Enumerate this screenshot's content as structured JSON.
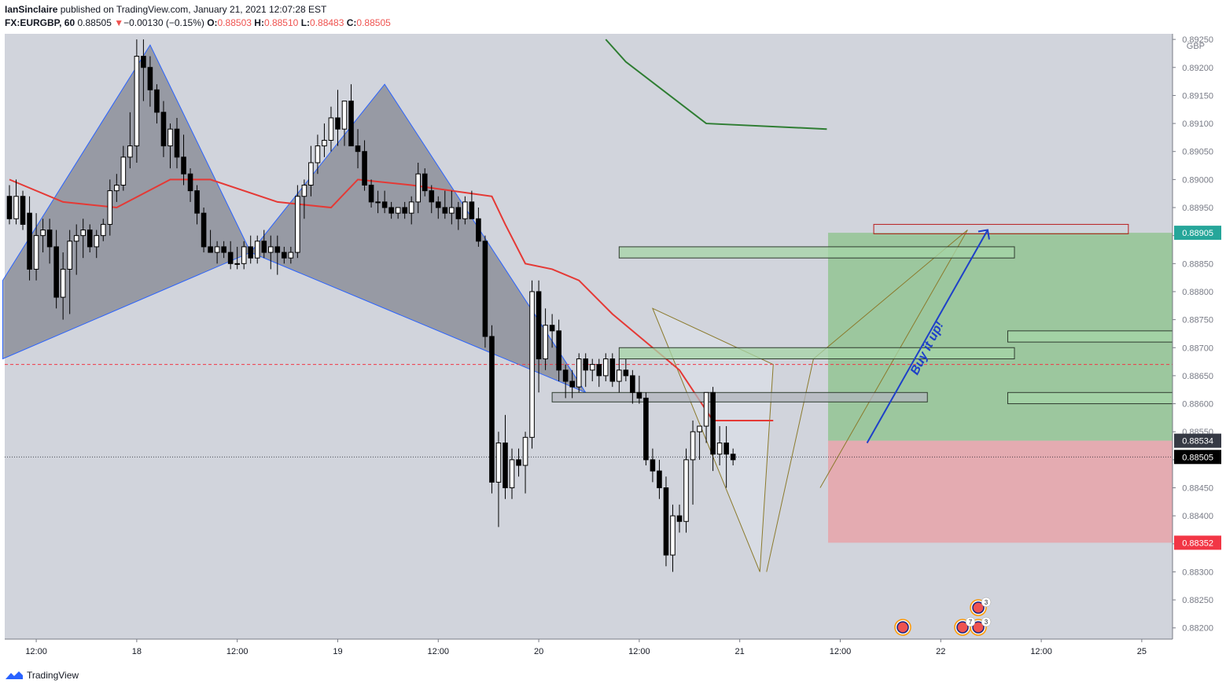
{
  "header": {
    "author": "IanSinclaire",
    "published_text": "published on TradingView.com, January 21, 2021 12:07:28 EST",
    "symbol": "FX:EURGBP, 60",
    "last_price": "0.88505",
    "change_arrow": "▼",
    "change": "−0.00130 (−0.15%)",
    "open_label": "O:",
    "open": "0.88503",
    "high_label": "H:",
    "high": "0.88510",
    "low_label": "L:",
    "low": "0.88483",
    "close_label": "C:",
    "close": "0.88505"
  },
  "footer": {
    "brand": "TradingView"
  },
  "colors": {
    "background": "#d1d4dc",
    "up_candle": "#ffffff",
    "down_candle": "#000000",
    "ma_red": "#e53935",
    "ma_green": "#2e7d32",
    "pattern_fill": "#787b86",
    "pattern_stroke": "#2962ff",
    "target_zone": "#8fc38f",
    "stop_zone": "#e8a3a9",
    "annotation_blue": "#1e40c8",
    "triangle_stroke": "#8b7a2c"
  },
  "chart_data": {
    "type": "candlestick",
    "symbol": "FX:EURGBP",
    "timeframe": "60",
    "currency": "GBP",
    "ylim": [
      0.8818,
      0.8926
    ],
    "y_ticks": [
      "0.89250",
      "0.89200",
      "0.89150",
      "0.89100",
      "0.89050",
      "0.89000",
      "0.88950",
      "0.88900",
      "0.88850",
      "0.88800",
      "0.88750",
      "0.88700",
      "0.88650",
      "0.88600",
      "0.88550",
      "0.88500",
      "0.88450",
      "0.88400",
      "0.88350",
      "0.88300",
      "0.88250",
      "0.88200"
    ],
    "x_ticks": [
      "12:00",
      "18",
      "12:00",
      "19",
      "12:00",
      "20",
      "12:00",
      "21",
      "12:00",
      "22",
      "12:00",
      "25"
    ],
    "candles_ohlc": [
      [
        0.8897,
        0.8899,
        0.8892,
        0.8893
      ],
      [
        0.8893,
        0.89,
        0.8892,
        0.8897
      ],
      [
        0.8897,
        0.8898,
        0.8891,
        0.8892
      ],
      [
        0.8894,
        0.8897,
        0.8882,
        0.8884
      ],
      [
        0.8884,
        0.8894,
        0.8882,
        0.889
      ],
      [
        0.889,
        0.8893,
        0.8887,
        0.8891
      ],
      [
        0.8891,
        0.8893,
        0.8885,
        0.8888
      ],
      [
        0.8888,
        0.8891,
        0.8877,
        0.8879
      ],
      [
        0.8879,
        0.8887,
        0.8875,
        0.8884
      ],
      [
        0.8884,
        0.8891,
        0.8876,
        0.8889
      ],
      [
        0.8889,
        0.8892,
        0.8883,
        0.889
      ],
      [
        0.889,
        0.8893,
        0.8886,
        0.8891
      ],
      [
        0.8891,
        0.8892,
        0.8887,
        0.8888
      ],
      [
        0.8888,
        0.8891,
        0.8886,
        0.889
      ],
      [
        0.889,
        0.8893,
        0.8889,
        0.8892
      ],
      [
        0.8892,
        0.89,
        0.889,
        0.8898
      ],
      [
        0.8898,
        0.8901,
        0.8896,
        0.8899
      ],
      [
        0.8899,
        0.8906,
        0.8898,
        0.8904
      ],
      [
        0.8904,
        0.8912,
        0.8902,
        0.8906
      ],
      [
        0.8906,
        0.8925,
        0.8903,
        0.8922
      ],
      [
        0.8922,
        0.8925,
        0.8914,
        0.892
      ],
      [
        0.892,
        0.8922,
        0.8913,
        0.8916
      ],
      [
        0.8916,
        0.8917,
        0.891,
        0.8912
      ],
      [
        0.8912,
        0.8914,
        0.8904,
        0.8906
      ],
      [
        0.8906,
        0.891,
        0.8902,
        0.8909
      ],
      [
        0.8909,
        0.8911,
        0.8902,
        0.8904
      ],
      [
        0.8904,
        0.8908,
        0.8899,
        0.8901
      ],
      [
        0.8901,
        0.8902,
        0.8896,
        0.8898
      ],
      [
        0.8898,
        0.8899,
        0.8892,
        0.8894
      ],
      [
        0.8894,
        0.8895,
        0.8887,
        0.8888
      ],
      [
        0.8888,
        0.8891,
        0.8887,
        0.8887
      ],
      [
        0.8887,
        0.8889,
        0.8885,
        0.8888
      ],
      [
        0.8888,
        0.8889,
        0.8886,
        0.8887
      ],
      [
        0.8887,
        0.8889,
        0.8884,
        0.8885
      ],
      [
        0.8885,
        0.8888,
        0.8884,
        0.8885
      ],
      [
        0.8885,
        0.8889,
        0.8884,
        0.8888
      ],
      [
        0.8888,
        0.889,
        0.8885,
        0.8886
      ],
      [
        0.8886,
        0.889,
        0.8885,
        0.8889
      ],
      [
        0.8889,
        0.8891,
        0.8886,
        0.8887
      ],
      [
        0.8887,
        0.889,
        0.8884,
        0.8888
      ],
      [
        0.8888,
        0.889,
        0.8883,
        0.8887
      ],
      [
        0.8887,
        0.8888,
        0.8885,
        0.8886
      ],
      [
        0.8886,
        0.8888,
        0.8885,
        0.8887
      ],
      [
        0.8887,
        0.8899,
        0.8886,
        0.8897
      ],
      [
        0.8897,
        0.89,
        0.8893,
        0.8899
      ],
      [
        0.8899,
        0.8906,
        0.8897,
        0.8903
      ],
      [
        0.8903,
        0.8908,
        0.8901,
        0.8906
      ],
      [
        0.8906,
        0.891,
        0.8904,
        0.8907
      ],
      [
        0.8907,
        0.8913,
        0.8905,
        0.8911
      ],
      [
        0.8911,
        0.8916,
        0.8906,
        0.8909
      ],
      [
        0.8909,
        0.8913,
        0.8906,
        0.8914
      ],
      [
        0.8914,
        0.8917,
        0.8908,
        0.8906
      ],
      [
        0.8906,
        0.8909,
        0.8902,
        0.8905
      ],
      [
        0.8905,
        0.8907,
        0.8898,
        0.8899
      ],
      [
        0.8899,
        0.89,
        0.8895,
        0.8896
      ],
      [
        0.8896,
        0.8898,
        0.8894,
        0.8896
      ],
      [
        0.8896,
        0.8898,
        0.8894,
        0.8895
      ],
      [
        0.8895,
        0.8896,
        0.8893,
        0.8894
      ],
      [
        0.8894,
        0.8895,
        0.8893,
        0.8895
      ],
      [
        0.8895,
        0.8896,
        0.8893,
        0.8894
      ],
      [
        0.8894,
        0.8897,
        0.8892,
        0.8896
      ],
      [
        0.8896,
        0.8903,
        0.8894,
        0.8901
      ],
      [
        0.8901,
        0.8902,
        0.8897,
        0.8898
      ],
      [
        0.8898,
        0.8899,
        0.8894,
        0.8896
      ],
      [
        0.8896,
        0.8897,
        0.8893,
        0.8895
      ],
      [
        0.8895,
        0.8898,
        0.8893,
        0.8894
      ],
      [
        0.8894,
        0.8898,
        0.8892,
        0.8895
      ],
      [
        0.8895,
        0.8896,
        0.8891,
        0.8893
      ],
      [
        0.8893,
        0.8897,
        0.8892,
        0.8896
      ],
      [
        0.8896,
        0.8898,
        0.8893,
        0.8893
      ],
      [
        0.8893,
        0.8895,
        0.8888,
        0.8889
      ],
      [
        0.8889,
        0.889,
        0.887,
        0.8872
      ],
      [
        0.8872,
        0.8874,
        0.8844,
        0.8846
      ],
      [
        0.8846,
        0.8855,
        0.8838,
        0.8853
      ],
      [
        0.8853,
        0.8858,
        0.8843,
        0.8845
      ],
      [
        0.8845,
        0.8852,
        0.8843,
        0.885
      ],
      [
        0.885,
        0.8852,
        0.8847,
        0.8849
      ],
      [
        0.8849,
        0.8855,
        0.8844,
        0.8854
      ],
      [
        0.8854,
        0.8882,
        0.8852,
        0.888
      ],
      [
        0.888,
        0.8882,
        0.8862,
        0.8868
      ],
      [
        0.8868,
        0.8877,
        0.8866,
        0.8874
      ],
      [
        0.8874,
        0.8876,
        0.887,
        0.8873
      ],
      [
        0.8873,
        0.8875,
        0.8864,
        0.8866
      ],
      [
        0.8866,
        0.8867,
        0.8861,
        0.8864
      ],
      [
        0.8864,
        0.8866,
        0.8861,
        0.8863
      ],
      [
        0.8863,
        0.8869,
        0.8862,
        0.8868
      ],
      [
        0.8868,
        0.8869,
        0.8863,
        0.8866
      ],
      [
        0.8866,
        0.8868,
        0.8864,
        0.8867
      ],
      [
        0.8867,
        0.8868,
        0.8863,
        0.8865
      ],
      [
        0.8865,
        0.8869,
        0.8864,
        0.8868
      ],
      [
        0.8868,
        0.8869,
        0.8863,
        0.8864
      ],
      [
        0.8864,
        0.8868,
        0.8862,
        0.8866
      ],
      [
        0.8866,
        0.8868,
        0.8864,
        0.8865
      ],
      [
        0.8865,
        0.8866,
        0.886,
        0.8862
      ],
      [
        0.8862,
        0.8865,
        0.886,
        0.8861
      ],
      [
        0.8861,
        0.8862,
        0.8849,
        0.885
      ],
      [
        0.885,
        0.8852,
        0.8846,
        0.8848
      ],
      [
        0.8848,
        0.885,
        0.8843,
        0.8845
      ],
      [
        0.8845,
        0.8847,
        0.8831,
        0.8833
      ],
      [
        0.8833,
        0.8842,
        0.883,
        0.884
      ],
      [
        0.884,
        0.8842,
        0.8837,
        0.8839
      ],
      [
        0.8839,
        0.8852,
        0.8837,
        0.885
      ],
      [
        0.885,
        0.8857,
        0.8842,
        0.8855
      ],
      [
        0.8855,
        0.8856,
        0.885,
        0.8856
      ],
      [
        0.8856,
        0.8862,
        0.8853,
        0.8862
      ],
      [
        0.8862,
        0.8863,
        0.8848,
        0.8851
      ],
      [
        0.8851,
        0.8856,
        0.8849,
        0.8853
      ],
      [
        0.8853,
        0.8856,
        0.8845,
        0.8851
      ],
      [
        0.8851,
        0.8852,
        0.8849,
        0.885
      ]
    ],
    "ma_red_points": [
      [
        0,
        0.89
      ],
      [
        8,
        0.8896
      ],
      [
        16,
        0.8895
      ],
      [
        24,
        0.89
      ],
      [
        30,
        0.89
      ],
      [
        40,
        0.8896
      ],
      [
        48,
        0.8895
      ],
      [
        52,
        0.89
      ],
      [
        60,
        0.8899
      ],
      [
        66,
        0.8898
      ],
      [
        72,
        0.8897
      ],
      [
        74,
        0.8892
      ],
      [
        77,
        0.8885
      ],
      [
        81,
        0.8884
      ],
      [
        85,
        0.8882
      ],
      [
        90,
        0.8876
      ],
      [
        96,
        0.887
      ],
      [
        100,
        0.8866
      ],
      [
        105,
        0.8857
      ],
      [
        110,
        0.8857
      ],
      [
        114,
        0.8857
      ]
    ],
    "ma_green_points": [
      [
        81,
        0.8925
      ],
      [
        84,
        0.8921
      ],
      [
        96,
        0.891
      ],
      [
        114,
        0.8909
      ]
    ],
    "last_price": 0.88505,
    "entry_price": 0.88534,
    "target_price": 0.88905,
    "stop_price": 0.88352,
    "dashed_level": 0.8867,
    "annotations": [
      "Buy it up!"
    ],
    "event_badges": [
      "3",
      "7",
      "3"
    ]
  }
}
